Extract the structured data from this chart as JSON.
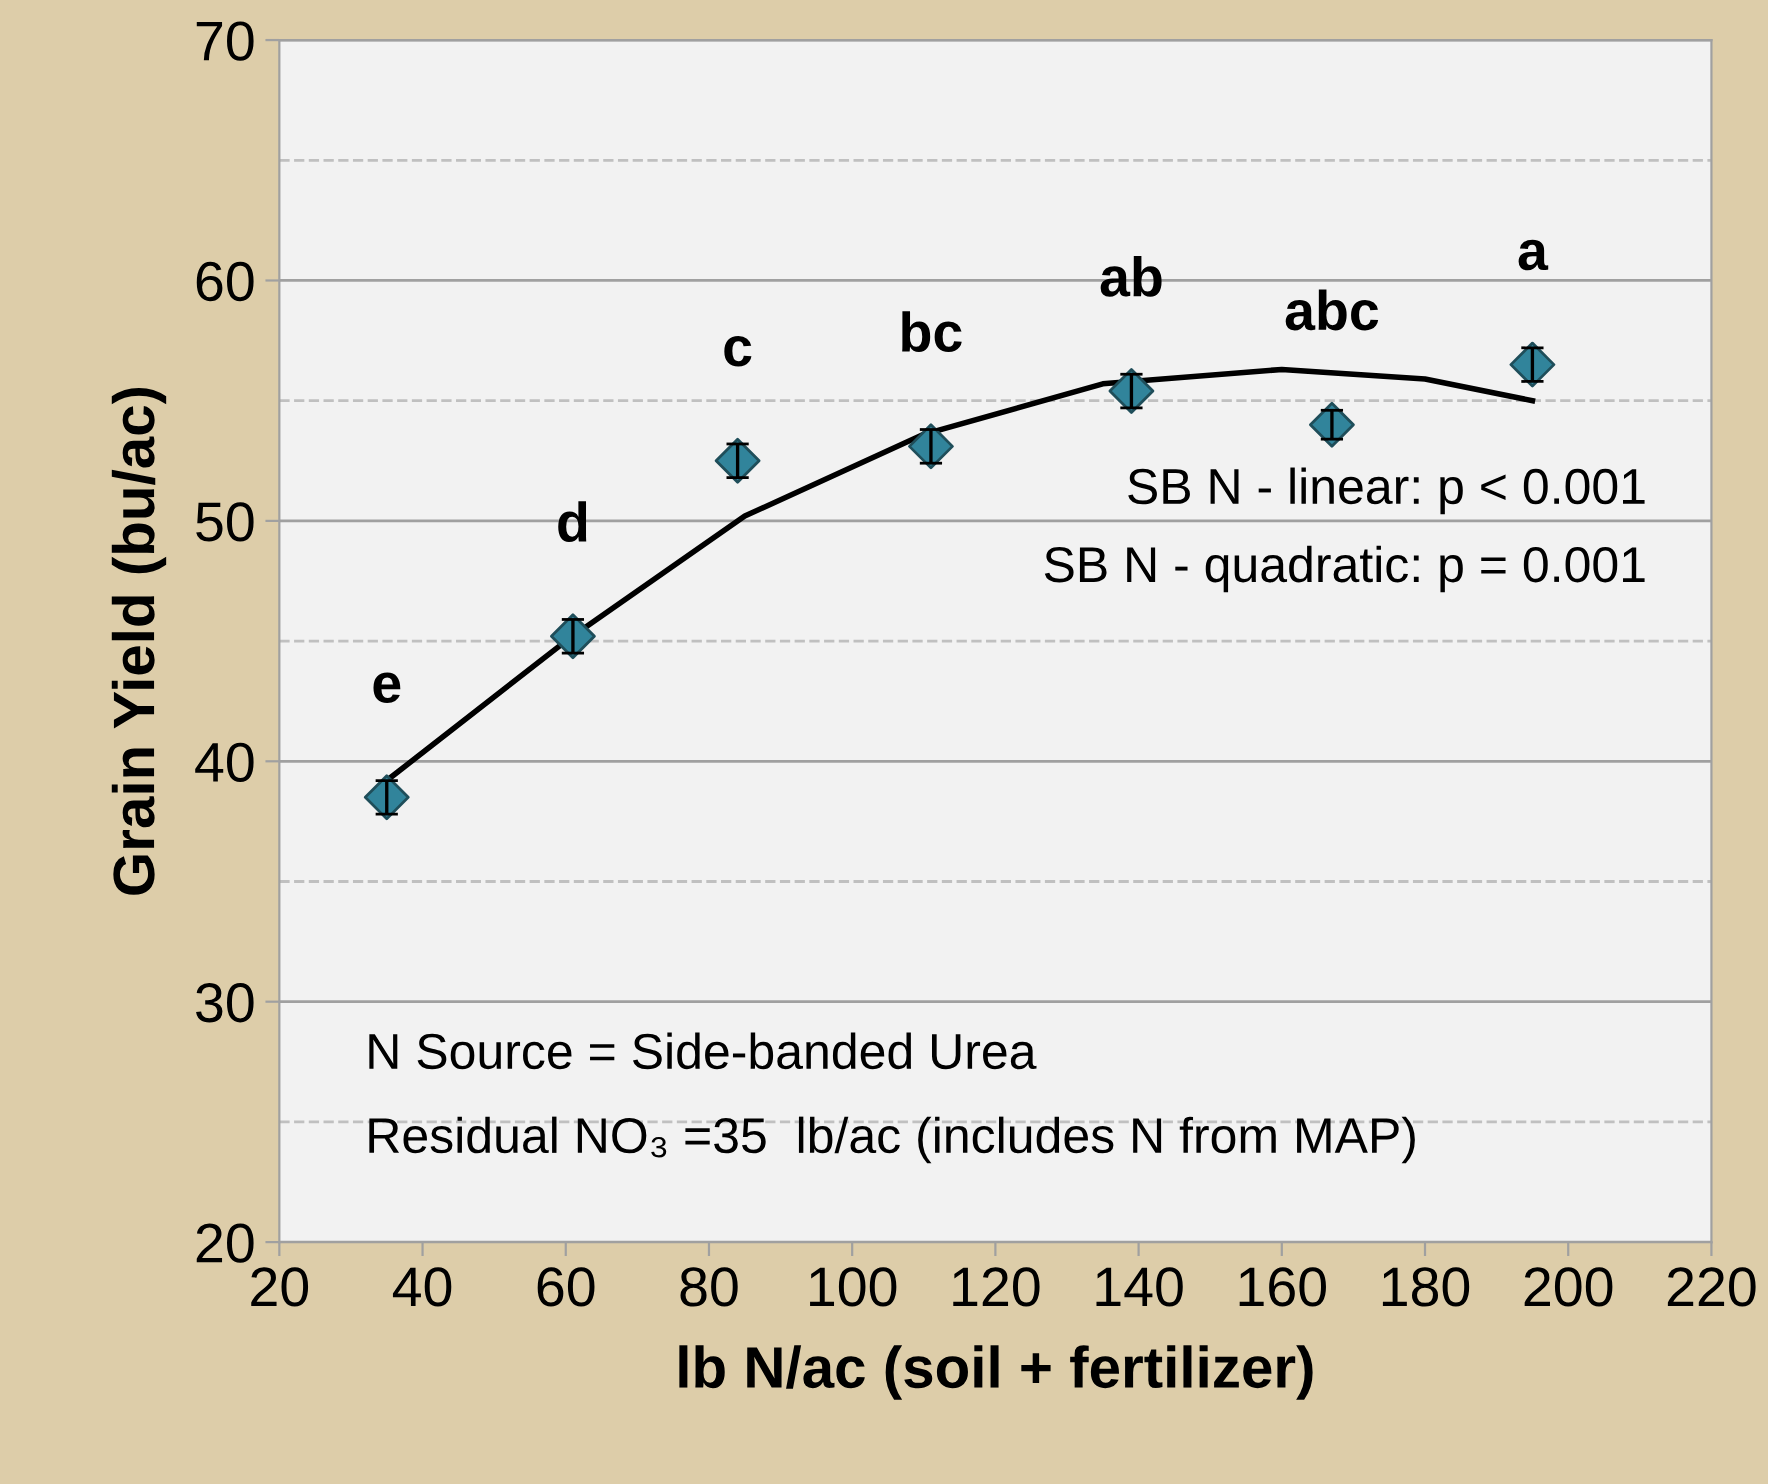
{
  "chart_data": {
    "type": "scatter",
    "xlabel": "lb N/ac (soil + fertilizer)",
    "ylabel": "Grain Yield (bu/ac)",
    "xlim": [
      20,
      220
    ],
    "xticks": [
      20,
      40,
      60,
      80,
      100,
      120,
      140,
      160,
      180,
      200,
      220
    ],
    "ylim": [
      20,
      70
    ],
    "yticks": [
      20,
      30,
      40,
      50,
      60,
      70
    ],
    "grid": "y",
    "series": [
      {
        "color": "#31849b",
        "marker": "diamond",
        "x": [
          35,
          61,
          84,
          111,
          139,
          167,
          195
        ],
        "values": [
          38.5,
          45.2,
          52.5,
          53.1,
          55.4,
          54.0,
          56.5
        ],
        "errors": [
          0.7,
          0.7,
          0.7,
          0.7,
          0.7,
          0.6,
          0.7
        ]
      },
      {
        "type": "line",
        "color": "#000000",
        "line_style": "solid",
        "x": [
          35,
          60,
          85,
          110,
          135,
          160,
          180,
          195
        ],
        "values": [
          39.2,
          45.0,
          50.2,
          53.6,
          55.7,
          56.3,
          55.9,
          55.0
        ]
      }
    ],
    "ref_lines": [
      {
        "axis": "y",
        "value": 25,
        "line_style": "dashed",
        "color": "#c0c0c0"
      },
      {
        "axis": "y",
        "value": 35,
        "line_style": "dashed",
        "color": "#c0c0c0"
      },
      {
        "axis": "y",
        "value": 45,
        "line_style": "dashed",
        "color": "#c0c0c0"
      },
      {
        "axis": "y",
        "value": 55,
        "line_style": "dashed",
        "color": "#c0c0c0"
      },
      {
        "axis": "y",
        "value": 65,
        "line_style": "dashed",
        "color": "#c0c0c0"
      }
    ],
    "annotations": [
      {
        "text": "e",
        "x": 35,
        "y": 38.5
      },
      {
        "text": "d",
        "x": 61,
        "y": 45.2
      },
      {
        "text": "c",
        "x": 84,
        "y": 52.5
      },
      {
        "text": "bc",
        "x": 111,
        "y": 53.1
      },
      {
        "text": "ab",
        "x": 139,
        "y": 55.4
      },
      {
        "text": "abc",
        "x": 167,
        "y": 54.0
      },
      {
        "text": "a",
        "x": 195,
        "y": 56.5
      },
      "SB N - linear: p < 0.001",
      "SB N - quadratic: p = 0.001",
      "N Source = Side-banded Urea",
      "Residual NO₃ =35  lb/ac (includes N from MAP)"
    ]
  }
}
